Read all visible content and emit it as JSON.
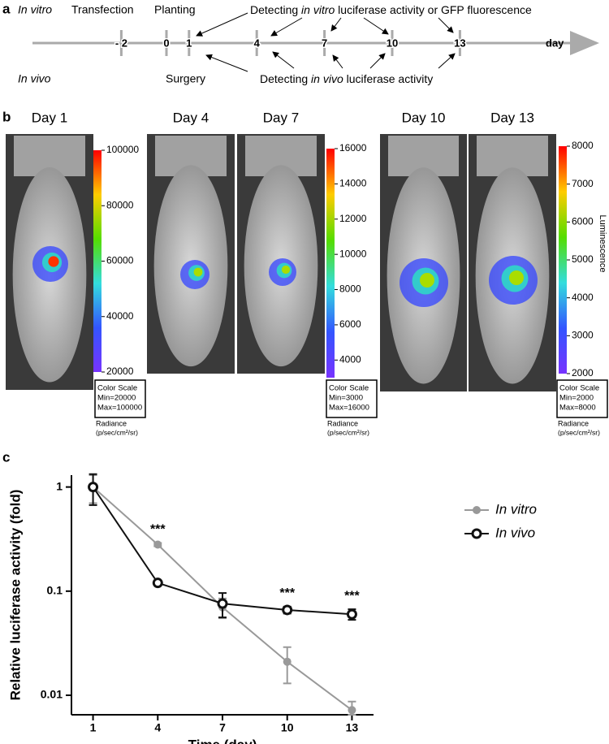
{
  "panel_a": {
    "label": "a",
    "in_vitro": "In vitro",
    "in_vivo": "In vivo",
    "axis_label": "day",
    "ticks": [
      {
        "value": -2,
        "label": "- 2"
      },
      0,
      1,
      4,
      7,
      10,
      13
    ],
    "transfection": "Transfection",
    "planting": "Planting",
    "surgery": "Surgery",
    "detect_vitro": [
      "Detecting ",
      "in vitro",
      " luciferase activity or GFP fluorescence"
    ],
    "detect_vivo": [
      "Detecting ",
      "in vivo",
      " luciferase activity"
    ]
  },
  "panel_b": {
    "label": "b",
    "days": [
      "Day 1",
      "Day 4",
      "Day 7",
      "Day 10",
      "Day 13"
    ],
    "colorbars": [
      {
        "lim": [
          20000,
          100000
        ],
        "ticks": [
          20000,
          40000,
          60000,
          80000,
          100000
        ],
        "scale": [
          "Color Scale",
          "Min=20000",
          "Max=100000"
        ]
      },
      {
        "lim": [
          3000,
          16000
        ],
        "ticks": [
          4000,
          6000,
          8000,
          10000,
          12000,
          14000,
          16000
        ],
        "scale": [
          "Color Scale",
          "Min=3000",
          "Max=16000"
        ]
      },
      {
        "lim": [
          2000,
          8000
        ],
        "ticks": [
          2000,
          3000,
          4000,
          5000,
          6000,
          7000,
          8000
        ],
        "scale": [
          "Color Scale",
          "Min=2000",
          "Max=8000"
        ]
      }
    ],
    "radiance": "Radiance",
    "radiance_unit": "(p/sec/cm²/sr)",
    "luminescence": "Luminescence"
  },
  "chart_data": {
    "type": "line",
    "label": "c",
    "x_label": "Time (day)",
    "y_label": "Relative luciferase activity (fold)",
    "x": [
      1,
      4,
      7,
      10,
      13
    ],
    "xlim": [
      0,
      14
    ],
    "xticks": [
      1,
      4,
      7,
      10,
      13
    ],
    "ylim": [
      0.0065,
      1.3
    ],
    "yticks": [
      0.01,
      0.1,
      1
    ],
    "log_y": true,
    "legend": "upper right",
    "series": [
      {
        "name": "In vitro",
        "color": "#999999",
        "marker": "filled",
        "values": [
          1,
          0.28,
          0.07,
          0.021,
          0.0072
        ],
        "errors": [
          0.3,
          0.01,
          0.015,
          0.008,
          0.0015
        ]
      },
      {
        "name": "In vivo",
        "color": "#111111",
        "marker": "open",
        "values": [
          1,
          0.12,
          0.076,
          0.066,
          0.06
        ],
        "errors": [
          0.33,
          0.005,
          0.02,
          0.005,
          0.007
        ]
      }
    ],
    "annotations": [
      {
        "x": 4,
        "label": "***"
      },
      {
        "x": 10,
        "label": "***"
      },
      {
        "x": 13,
        "label": "***"
      }
    ]
  }
}
